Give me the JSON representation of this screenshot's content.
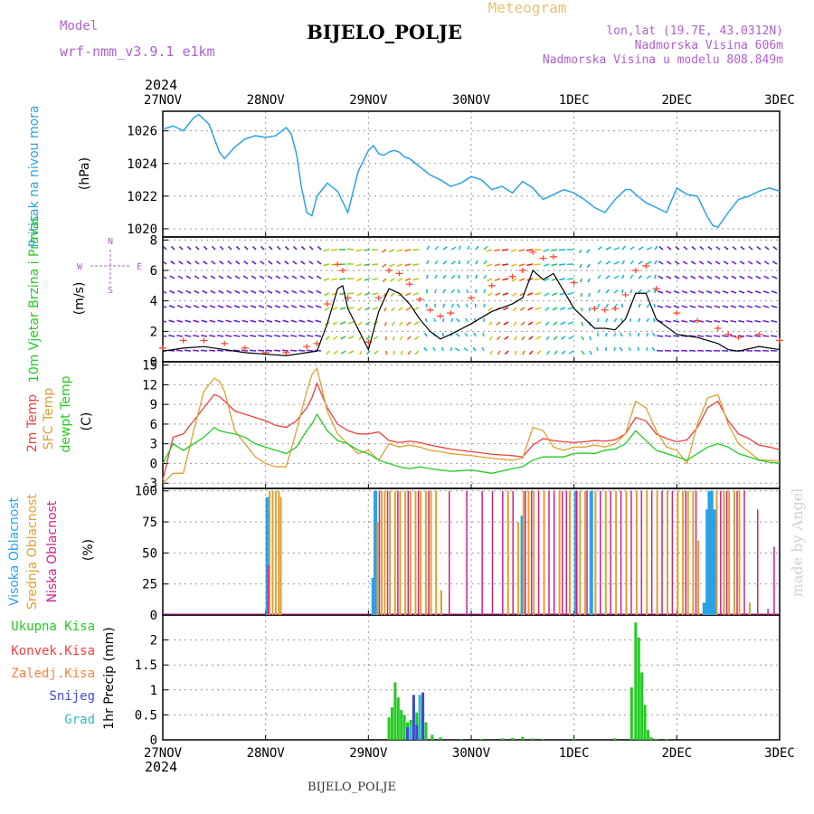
{
  "header": {
    "model_label": "Model",
    "model_name": "wrf-nmm_v3.9.1 e1km",
    "product": "Meteogram",
    "location": "BIJELO_POLJE",
    "coords": "lon,lat (19.7E, 43.0312N)",
    "elevation": "Nadmorska Visina 606m",
    "model_elevation": "Nadmorska Visina u modelu 808.849m",
    "watermark": "made by Angel",
    "footer_location": "BIJELO_POLJE"
  },
  "time_axis": {
    "year": "2024",
    "labels": [
      "27NOV",
      "28NOV",
      "29NOV",
      "30NOV",
      "1DEC",
      "2DEC",
      "3DEC"
    ]
  },
  "colors": {
    "pressure": "#29a3e8",
    "temp2m": "#ee4040",
    "sfc": "#e0a030",
    "dewpt": "#22cc22",
    "high_cloud": "#29a3e8",
    "mid_cloud": "#e0a030",
    "low_cloud": "#cc2288",
    "total_precip": "#22cc22",
    "conv_precip": "#ee4040",
    "frz_precip": "#ff8040",
    "snow": "#4444dd",
    "graupel": "#33bbbb",
    "wind_speed": "#000000",
    "gust": "#ff4020"
  },
  "chart_data": [
    {
      "type": "line",
      "panel": "pressure",
      "ylabel_left": "Pritisak na nivou mora",
      "ylabel_unit": "(hPa)",
      "ylim": [
        1019.5,
        1027.2
      ],
      "yticks": [
        1020,
        1022,
        1024,
        1026
      ],
      "grid": true,
      "x_days": [
        0,
        0.1,
        0.2,
        0.3,
        0.35,
        0.45,
        0.55,
        0.6,
        0.7,
        0.8,
        0.9,
        1.0,
        1.1,
        1.2,
        1.25,
        1.3,
        1.35,
        1.4,
        1.45,
        1.5,
        1.6,
        1.7,
        1.8,
        1.9,
        2.0,
        2.05,
        2.1,
        2.15,
        2.2,
        2.25,
        2.3,
        2.35,
        2.4,
        2.5,
        2.6,
        2.7,
        2.8,
        2.9,
        3.0,
        3.1,
        3.2,
        3.3,
        3.4,
        3.5,
        3.6,
        3.7,
        3.8,
        3.9,
        4.0,
        4.1,
        4.2,
        4.3,
        4.4,
        4.5,
        4.55,
        4.6,
        4.7,
        4.8,
        4.9,
        5.0,
        5.1,
        5.2,
        5.3,
        5.35,
        5.4,
        5.5,
        5.6,
        5.7,
        5.8,
        5.9,
        6.0
      ],
      "series": [
        {
          "values": [
            1026.1,
            1026.3,
            1026.0,
            1026.8,
            1027.0,
            1026.4,
            1024.7,
            1024.3,
            1025.0,
            1025.5,
            1025.7,
            1025.6,
            1025.7,
            1026.2,
            1025.8,
            1024.6,
            1022.5,
            1021.0,
            1020.8,
            1022.0,
            1022.8,
            1022.3,
            1021.0,
            1023.5,
            1024.8,
            1025.1,
            1024.6,
            1024.5,
            1024.7,
            1024.8,
            1024.7,
            1024.4,
            1024.3,
            1023.8,
            1023.3,
            1023.0,
            1022.6,
            1022.8,
            1023.2,
            1023.0,
            1022.4,
            1022.6,
            1022.2,
            1022.9,
            1022.5,
            1021.8,
            1022.1,
            1022.4,
            1022.2,
            1021.8,
            1021.3,
            1021.0,
            1021.8,
            1022.4,
            1022.4,
            1022.1,
            1021.6,
            1021.3,
            1021.0,
            1022.5,
            1022.1,
            1022.0,
            1020.7,
            1020.2,
            1020.1,
            1021.0,
            1021.8,
            1022.0,
            1022.3,
            1022.5,
            1022.3
          ]
        }
      ]
    },
    {
      "type": "line",
      "panel": "wind",
      "ylabel_left": "10m Vjetar Brzina i Pravac",
      "ylabel_unit": "(m/s)",
      "direction_key": [
        "N",
        "S",
        "W",
        "E"
      ],
      "ylim": [
        0,
        8.2
      ],
      "yticks": [
        0,
        2,
        4,
        6,
        8
      ],
      "grid": true,
      "x_days": [
        0,
        0.2,
        0.4,
        0.6,
        0.8,
        1.0,
        1.2,
        1.4,
        1.5,
        1.6,
        1.7,
        1.75,
        1.8,
        2.0,
        2.1,
        2.2,
        2.3,
        2.4,
        2.5,
        2.6,
        2.7,
        2.8,
        3.0,
        3.2,
        3.4,
        3.5,
        3.6,
        3.7,
        3.8,
        4.0,
        4.2,
        4.3,
        4.4,
        4.5,
        4.6,
        4.7,
        4.8,
        5.0,
        5.2,
        5.4,
        5.5,
        5.6,
        5.8,
        6.0
      ],
      "series": [
        {
          "name": "speed",
          "values": [
            0.7,
            0.9,
            1.0,
            0.8,
            0.6,
            0.5,
            0.4,
            0.6,
            0.7,
            2.5,
            4.8,
            5.0,
            3.5,
            0.8,
            3.3,
            4.8,
            4.5,
            3.8,
            2.8,
            2.0,
            1.5,
            1.8,
            2.5,
            3.3,
            3.8,
            4.2,
            6.0,
            5.4,
            5.8,
            3.5,
            2.2,
            2.2,
            2.1,
            2.8,
            4.5,
            4.5,
            2.8,
            1.8,
            1.6,
            1.2,
            0.8,
            0.7,
            1.0,
            0.8
          ]
        },
        {
          "name": "gust",
          "values": [
            0.9,
            1.4,
            1.4,
            1.2,
            0.9,
            0.6,
            0.6,
            1.0,
            1.2,
            3.8,
            6.4,
            6.0,
            4.2,
            1.3,
            4.2,
            6.0,
            5.8,
            5.1,
            4.1,
            3.4,
            3.0,
            3.2,
            4.2,
            5.0,
            5.6,
            6.0,
            7.2,
            6.8,
            6.9,
            5.2,
            3.5,
            3.4,
            3.5,
            4.4,
            6.0,
            6.3,
            4.8,
            3.2,
            2.7,
            2.2,
            1.8,
            1.6,
            1.8,
            1.4
          ]
        }
      ]
    },
    {
      "type": "line",
      "panel": "temperature",
      "ylabel_left": [
        "2m Temp",
        "SFC Temp",
        "dewpt Temp"
      ],
      "ylabel_unit": "(C)",
      "ylim": [
        -3.8,
        15.5
      ],
      "yticks": [
        -3,
        0,
        3,
        6,
        9,
        12,
        15
      ],
      "grid": true,
      "x_days": [
        0,
        0.1,
        0.2,
        0.3,
        0.4,
        0.5,
        0.55,
        0.6,
        0.7,
        0.8,
        0.9,
        1.0,
        1.1,
        1.2,
        1.3,
        1.4,
        1.45,
        1.5,
        1.6,
        1.7,
        1.8,
        1.9,
        2.0,
        2.1,
        2.2,
        2.3,
        2.4,
        2.5,
        2.6,
        2.7,
        2.8,
        3.0,
        3.2,
        3.4,
        3.5,
        3.6,
        3.7,
        3.8,
        3.9,
        4.0,
        4.1,
        4.2,
        4.3,
        4.4,
        4.5,
        4.6,
        4.7,
        4.8,
        4.9,
        5.0,
        5.1,
        5.2,
        5.3,
        5.4,
        5.5,
        5.6,
        5.7,
        5.8,
        5.9,
        6.0
      ],
      "series": [
        {
          "name": "2m Temp",
          "values": [
            -2.5,
            4.0,
            4.5,
            6.5,
            8.5,
            10.5,
            10.2,
            9.5,
            8.0,
            7.5,
            7.0,
            6.5,
            5.8,
            5.5,
            6.5,
            8.5,
            10.0,
            12.2,
            8.5,
            6.0,
            5.0,
            4.5,
            4.5,
            4.8,
            3.5,
            3.2,
            3.4,
            3.2,
            2.8,
            2.5,
            2.2,
            1.8,
            1.4,
            1.2,
            1.0,
            2.8,
            3.8,
            3.5,
            3.3,
            3.2,
            3.3,
            3.5,
            3.4,
            3.6,
            4.5,
            7.0,
            6.5,
            4.5,
            3.8,
            3.3,
            3.6,
            5.5,
            8.5,
            9.5,
            6.5,
            4.5,
            3.8,
            2.8,
            2.5,
            2.1
          ]
        },
        {
          "name": "SFC Temp",
          "values": [
            -3.0,
            -1.5,
            -1.5,
            5.0,
            11.0,
            13.0,
            12.5,
            11.0,
            5.0,
            3.0,
            1.0,
            0.0,
            -0.5,
            -0.5,
            5.0,
            11.0,
            13.5,
            14.5,
            8.0,
            4.5,
            3.0,
            1.5,
            2.0,
            0.5,
            3.0,
            2.5,
            2.8,
            2.5,
            2.0,
            1.8,
            1.5,
            1.2,
            0.8,
            0.5,
            0.8,
            5.5,
            5.0,
            2.5,
            2.0,
            2.5,
            2.5,
            2.8,
            2.5,
            3.0,
            4.5,
            9.5,
            8.5,
            5.0,
            2.5,
            2.0,
            0.0,
            6.0,
            10.0,
            10.5,
            6.0,
            3.0,
            1.8,
            0.5,
            0.5,
            0.3
          ]
        },
        {
          "name": "dewpt Temp",
          "values": [
            0.0,
            3.0,
            2.0,
            3.0,
            4.0,
            5.5,
            5.0,
            4.8,
            4.5,
            4.0,
            3.0,
            2.5,
            2.0,
            1.5,
            2.5,
            5.0,
            6.0,
            7.5,
            5.0,
            3.5,
            3.0,
            2.0,
            1.5,
            0.5,
            0.0,
            -0.5,
            -0.8,
            -0.5,
            -0.8,
            -1.0,
            -1.2,
            -1.0,
            -1.5,
            -0.8,
            -0.5,
            0.5,
            1.0,
            1.0,
            1.0,
            1.5,
            1.6,
            1.5,
            2.0,
            2.2,
            3.0,
            5.0,
            3.5,
            2.0,
            1.5,
            1.0,
            0.5,
            1.5,
            2.5,
            3.0,
            2.5,
            1.5,
            1.0,
            0.5,
            0.2,
            0.0
          ]
        }
      ]
    },
    {
      "type": "bar",
      "panel": "clouds",
      "ylabel_left": [
        "Visoka Oblacnost",
        "Srednja Oblacnost",
        "Niska Oblacnost"
      ],
      "ylabel_unit": "(%)",
      "ylim": [
        0,
        102
      ],
      "yticks": [
        0,
        25,
        50,
        75,
        100
      ],
      "grid": true,
      "series": [
        {
          "name": "Visoka Oblacnost",
          "x_days": [
            1.0,
            2.03,
            2.05,
            3.48,
            4.0,
            4.15,
            5.25,
            5.28,
            5.3,
            5.32,
            5.35
          ],
          "values": [
            95,
            30,
            100,
            80,
            100,
            100,
            10,
            85,
            100,
            100,
            85
          ]
        },
        {
          "name": "Srednja Oblacnost",
          "x_days": [
            1.03,
            1.06,
            1.09,
            1.12,
            1.14,
            2.08,
            2.12,
            2.15,
            2.2,
            2.25,
            2.3,
            2.35,
            2.4,
            2.45,
            2.5,
            2.55,
            2.6,
            2.65,
            2.7,
            3.35,
            3.45,
            3.5,
            3.55,
            3.6,
            3.7,
            3.85,
            3.95,
            4.05,
            4.1,
            4.2,
            4.3,
            4.4,
            4.5,
            4.6,
            4.7,
            4.8,
            4.9,
            5.0,
            5.05,
            5.1,
            5.15,
            5.2,
            5.38,
            5.45,
            5.5,
            5.55,
            5.6,
            5.7
          ],
          "values": [
            100,
            100,
            100,
            100,
            95,
            75,
            100,
            100,
            100,
            100,
            100,
            100,
            100,
            100,
            100,
            100,
            100,
            100,
            20,
            100,
            75,
            100,
            100,
            100,
            100,
            100,
            100,
            100,
            100,
            100,
            100,
            100,
            100,
            100,
            100,
            100,
            100,
            100,
            100,
            100,
            100,
            60,
            100,
            100,
            100,
            100,
            100,
            10
          ]
        },
        {
          "name": "Niska Oblacnost",
          "x_days": [
            1.02,
            2.1,
            2.18,
            2.28,
            2.38,
            2.48,
            2.58,
            2.78,
            2.95,
            3.1,
            3.2,
            3.3,
            3.4,
            3.52,
            3.58,
            3.65,
            3.75,
            3.8,
            3.88,
            3.92,
            4.02,
            4.12,
            4.25,
            4.35,
            4.45,
            4.55,
            4.65,
            4.75,
            4.85,
            4.95,
            5.08,
            5.18,
            5.42,
            5.48,
            5.58,
            5.65,
            5.78,
            5.88,
            5.94
          ],
          "values": [
            40,
            100,
            100,
            100,
            100,
            100,
            100,
            100,
            100,
            100,
            100,
            100,
            100,
            100,
            100,
            100,
            100,
            100,
            100,
            100,
            100,
            100,
            100,
            100,
            100,
            100,
            100,
            100,
            100,
            100,
            100,
            100,
            100,
            100,
            100,
            100,
            85,
            5,
            55
          ]
        }
      ]
    },
    {
      "type": "bar",
      "panel": "precipitation",
      "legend": [
        "Ukupna Kisa",
        "Konvek.Kisa",
        "Zaledj.Kisa",
        "Snijeg",
        "Grad"
      ],
      "ylabel_unit": "1hr Precip (mm)",
      "ylim": [
        0,
        2.5
      ],
      "yticks": [
        0,
        0.5,
        1,
        1.5,
        2
      ],
      "ytick_labels": [
        "0",
        "0.5",
        "1",
        "1.5",
        "2"
      ],
      "grid": true,
      "series": [
        {
          "name": "Ukupna Kisa",
          "x_days": [
            2.2,
            2.23,
            2.26,
            2.29,
            2.32,
            2.35,
            2.38,
            2.41,
            2.44,
            2.47,
            2.5,
            2.53,
            2.56,
            2.62,
            2.7,
            2.9,
            3.1,
            3.3,
            3.4,
            3.5,
            3.6,
            3.7,
            4.0,
            4.4,
            4.56,
            4.6,
            4.63,
            4.66,
            4.69,
            4.72,
            4.75,
            4.8,
            4.9
          ],
          "values": [
            0.45,
            0.65,
            1.15,
            0.85,
            0.6,
            0.5,
            0.35,
            0.4,
            0.75,
            0.55,
            0.45,
            0.7,
            0.35,
            0.1,
            0.05,
            0.02,
            0.02,
            0.03,
            0.04,
            0.06,
            0.03,
            0.02,
            0.02,
            0.03,
            1.05,
            2.35,
            2.05,
            1.35,
            0.7,
            0.2,
            0.05,
            0.02,
            0.01
          ]
        },
        {
          "name": "Snijeg",
          "x_days": [
            2.38,
            2.44,
            2.47,
            2.53
          ],
          "values": [
            0.25,
            0.9,
            0.3,
            0.95
          ]
        },
        {
          "name": "Grad",
          "x_days": [
            2.41,
            2.5
          ],
          "values": [
            0.3,
            0.9
          ]
        }
      ]
    }
  ]
}
